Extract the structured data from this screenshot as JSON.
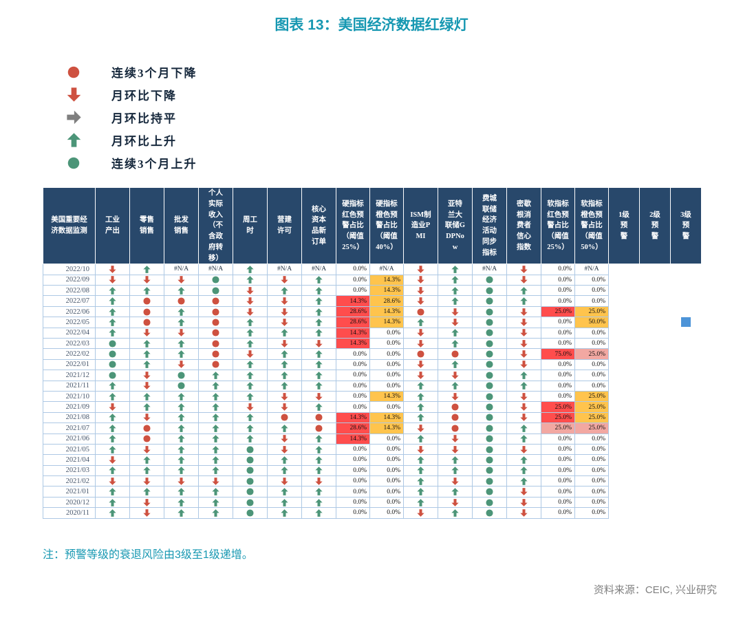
{
  "title": "图表 13：美国经济数据红绿灯",
  "note": "注：预警等级的衰退风险由3级至1级递增。",
  "source": "资料来源：CEIC, 兴业研究",
  "colors": {
    "title": "#1798B2",
    "header_bg": "#28486B",
    "red": "#CE5140",
    "green": "#4C9578",
    "gray": "#7F7F7F",
    "bg_red": "#FF4D4D",
    "bg_yellow": "#FFC44D",
    "bg_pink": "#F2A8A2",
    "blue_square": "#4D94D8",
    "grid_border": "#ADC8E4"
  },
  "legend": [
    {
      "code": "D",
      "icon": "down3-circle-icon",
      "label": "连续3个月下降"
    },
    {
      "code": "d",
      "icon": "down-arrow-icon",
      "label": "月环比下降"
    },
    {
      "code": "f",
      "icon": "flat-arrow-icon",
      "label": "月环比持平"
    },
    {
      "code": "u",
      "icon": "up-arrow-icon",
      "label": "月环比上升"
    },
    {
      "code": "U",
      "icon": "up3-circle-icon",
      "label": "连续3个月上升"
    }
  ],
  "chart_data": {
    "type": "table",
    "title": "图表 13：美国经济数据红绿灯",
    "corner_header": "美国重要经济数据监测",
    "na_display": "#N/A",
    "cell_codes": {
      "u": "月环比上升",
      "d": "月环比下降",
      "f": "月环比持平",
      "U": "连续3个月上升",
      "D": "连续3个月下降",
      "na": "#N/A",
      "sq": "3级预警标记"
    },
    "columns": [
      {
        "label": "工业产出",
        "type": "icon"
      },
      {
        "label": "零售销售",
        "type": "icon"
      },
      {
        "label": "批发销售",
        "type": "icon"
      },
      {
        "label": "个人实际收入（不含政府转移）",
        "type": "icon"
      },
      {
        "label": "周工时",
        "type": "icon"
      },
      {
        "label": "营建许可",
        "type": "icon"
      },
      {
        "label": "核心资本品新订单",
        "type": "icon"
      },
      {
        "label": "硬指标红色预警占比（阈值25%）",
        "type": "pct"
      },
      {
        "label": "硬指标橙色预警占比（阈值40%）",
        "type": "pct"
      },
      {
        "label": "ISM制造业PMI",
        "type": "icon"
      },
      {
        "label": "亚特兰大联储GDPNow",
        "type": "icon"
      },
      {
        "label": "费城联储经济活动同步指标",
        "type": "icon"
      },
      {
        "label": "密歇根消费者信心指数",
        "type": "icon"
      },
      {
        "label": "软指标红色预警占比（阈值25%）",
        "type": "pct"
      },
      {
        "label": "软指标橙色预警占比（阈值50%）",
        "type": "pct"
      },
      {
        "label": "1级预警",
        "type": "warn"
      },
      {
        "label": "2级预警",
        "type": "warn"
      },
      {
        "label": "3级预警",
        "type": "warn"
      }
    ],
    "rows": [
      {
        "date": "2022/10",
        "cells": [
          "d",
          "u",
          "na",
          "na",
          "u",
          "na",
          "na",
          "0.0%",
          "na",
          "d",
          "u",
          "na",
          "d",
          "0.0%",
          "na",
          "",
          "",
          ""
        ]
      },
      {
        "date": "2022/09",
        "cells": [
          "d",
          "d",
          "d",
          "U",
          "u",
          "d",
          "u",
          "0.0%",
          "14.3%|y",
          "d",
          "u",
          "U",
          "d",
          "0.0%",
          "0.0%",
          "",
          "",
          ""
        ]
      },
      {
        "date": "2022/08",
        "cells": [
          "u",
          "u",
          "u",
          "U",
          "d",
          "u",
          "u",
          "0.0%",
          "14.3%|y",
          "d",
          "u",
          "U",
          "u",
          "0.0%",
          "0.0%",
          "",
          "",
          ""
        ]
      },
      {
        "date": "2022/07",
        "cells": [
          "u",
          "D",
          "D",
          "D",
          "d",
          "d",
          "u",
          "14.3%|r",
          "28.6%|y",
          "d",
          "u",
          "U",
          "u",
          "0.0%",
          "0.0%",
          "",
          "",
          ""
        ]
      },
      {
        "date": "2022/06",
        "cells": [
          "u",
          "D",
          "u",
          "D",
          "d",
          "d",
          "u",
          "28.6%|r",
          "14.3%|y",
          "D",
          "d",
          "U",
          "d",
          "25.0%|r",
          "25.0%|y",
          "",
          "",
          ""
        ]
      },
      {
        "date": "2022/05",
        "cells": [
          "u",
          "D",
          "u",
          "D",
          "u",
          "d",
          "u",
          "28.6%|r",
          "14.3%|y",
          "u",
          "d",
          "U",
          "d",
          "0.0%",
          "50.0%|y",
          "",
          "",
          "sq"
        ]
      },
      {
        "date": "2022/04",
        "cells": [
          "u",
          "d",
          "d",
          "D",
          "u",
          "u",
          "u",
          "14.3%|r",
          "0.0%",
          "d",
          "u",
          "U",
          "d",
          "0.0%",
          "0.0%",
          "",
          "",
          ""
        ]
      },
      {
        "date": "2022/03",
        "cells": [
          "U",
          "u",
          "u",
          "D",
          "u",
          "d",
          "d",
          "14.3%|r",
          "0.0%",
          "d",
          "u",
          "U",
          "d",
          "0.0%",
          "0.0%",
          "",
          "",
          ""
        ]
      },
      {
        "date": "2022/02",
        "cells": [
          "U",
          "u",
          "u",
          "D",
          "d",
          "u",
          "u",
          "0.0%",
          "0.0%",
          "D",
          "D",
          "U",
          "d",
          "75.0%|r",
          "25.0%|p",
          "",
          "",
          ""
        ]
      },
      {
        "date": "2022/01",
        "cells": [
          "U",
          "u",
          "d",
          "D",
          "u",
          "u",
          "u",
          "0.0%",
          "0.0%",
          "d",
          "u",
          "U",
          "d",
          "0.0%",
          "0.0%",
          "",
          "",
          ""
        ]
      },
      {
        "date": "2021/12",
        "cells": [
          "U",
          "d",
          "U",
          "u",
          "u",
          "u",
          "u",
          "0.0%",
          "0.0%",
          "d",
          "d",
          "U",
          "u",
          "0.0%",
          "0.0%",
          "",
          "",
          ""
        ]
      },
      {
        "date": "2021/11",
        "cells": [
          "u",
          "d",
          "U",
          "u",
          "u",
          "u",
          "u",
          "0.0%",
          "0.0%",
          "u",
          "u",
          "U",
          "u",
          "0.0%",
          "0.0%",
          "",
          "",
          ""
        ]
      },
      {
        "date": "2021/10",
        "cells": [
          "u",
          "u",
          "u",
          "u",
          "u",
          "d",
          "d",
          "0.0%",
          "14.3%|y",
          "u",
          "d",
          "U",
          "d",
          "0.0%",
          "25.0%|y",
          "",
          "",
          ""
        ]
      },
      {
        "date": "2021/09",
        "cells": [
          "d",
          "u",
          "u",
          "u",
          "d",
          "d",
          "u",
          "0.0%",
          "0.0%",
          "u",
          "D",
          "U",
          "d",
          "25.0%|r",
          "25.0%|y",
          "",
          "",
          ""
        ]
      },
      {
        "date": "2021/08",
        "cells": [
          "u",
          "d",
          "u",
          "u",
          "u",
          "D",
          "D",
          "14.3%|r",
          "14.3%|y",
          "u",
          "D",
          "U",
          "d",
          "25.0%|r",
          "25.0%|y",
          "",
          "",
          ""
        ]
      },
      {
        "date": "2021/07",
        "cells": [
          "u",
          "D",
          "u",
          "u",
          "u",
          "u",
          "D",
          "28.6%|r",
          "14.3%|y",
          "d",
          "D",
          "U",
          "u",
          "25.0%|p",
          "25.0%|p",
          "",
          "",
          ""
        ]
      },
      {
        "date": "2021/06",
        "cells": [
          "u",
          "D",
          "u",
          "u",
          "u",
          "d",
          "u",
          "14.3%|r",
          "0.0%",
          "u",
          "d",
          "U",
          "u",
          "0.0%",
          "0.0%",
          "",
          "",
          ""
        ]
      },
      {
        "date": "2021/05",
        "cells": [
          "u",
          "d",
          "u",
          "u",
          "U",
          "d",
          "u",
          "0.0%",
          "0.0%",
          "d",
          "d",
          "U",
          "d",
          "0.0%",
          "0.0%",
          "",
          "",
          ""
        ]
      },
      {
        "date": "2021/04",
        "cells": [
          "d",
          "u",
          "u",
          "u",
          "U",
          "u",
          "u",
          "0.0%",
          "0.0%",
          "u",
          "u",
          "U",
          "u",
          "0.0%",
          "0.0%",
          "",
          "",
          ""
        ]
      },
      {
        "date": "2021/03",
        "cells": [
          "u",
          "u",
          "u",
          "u",
          "U",
          "u",
          "u",
          "0.0%",
          "0.0%",
          "u",
          "u",
          "U",
          "u",
          "0.0%",
          "0.0%",
          "",
          "",
          ""
        ]
      },
      {
        "date": "2021/02",
        "cells": [
          "d",
          "d",
          "d",
          "d",
          "U",
          "d",
          "d",
          "0.0%",
          "0.0%",
          "u",
          "d",
          "U",
          "u",
          "0.0%",
          "0.0%",
          "",
          "",
          ""
        ]
      },
      {
        "date": "2021/01",
        "cells": [
          "u",
          "u",
          "u",
          "u",
          "U",
          "u",
          "u",
          "0.0%",
          "0.0%",
          "u",
          "u",
          "U",
          "d",
          "0.0%",
          "0.0%",
          "",
          "",
          ""
        ]
      },
      {
        "date": "2020/12",
        "cells": [
          "u",
          "d",
          "u",
          "u",
          "U",
          "u",
          "u",
          "0.0%",
          "0.0%",
          "u",
          "d",
          "U",
          "d",
          "0.0%",
          "0.0%",
          "",
          "",
          ""
        ]
      },
      {
        "date": "2020/11",
        "cells": [
          "u",
          "d",
          "u",
          "u",
          "U",
          "u",
          "u",
          "0.0%",
          "0.0%",
          "d",
          "u",
          "U",
          "d",
          "0.0%",
          "0.0%",
          "",
          "",
          ""
        ]
      }
    ]
  }
}
